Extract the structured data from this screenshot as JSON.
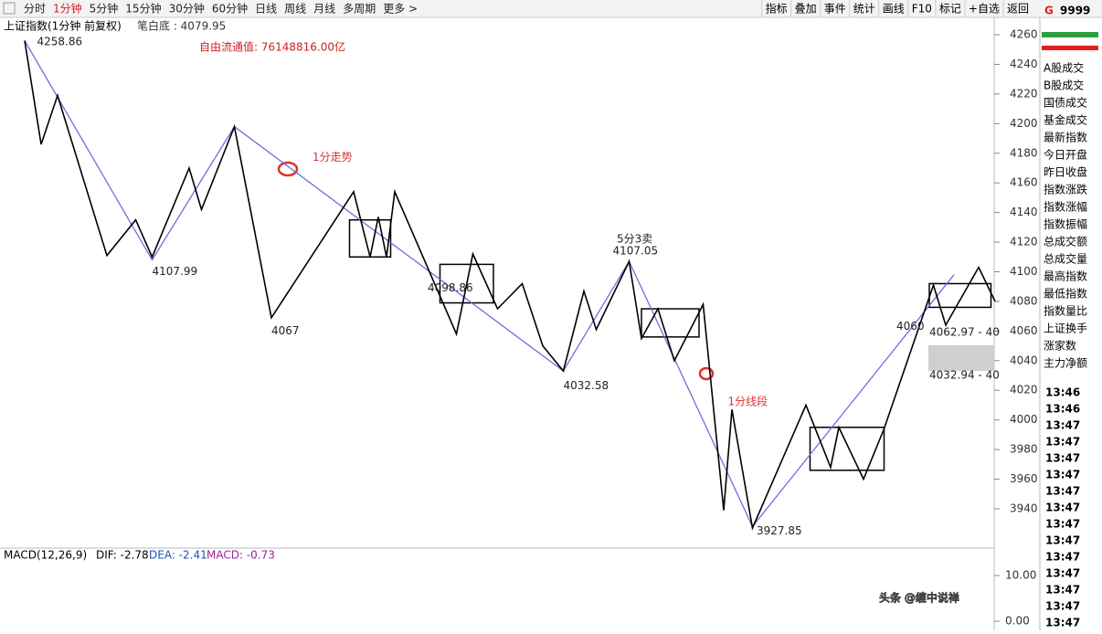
{
  "toolbar": {
    "left": [
      "分时",
      "1分钟",
      "5分钟",
      "15分钟",
      "30分钟",
      "60分钟",
      "日线",
      "周线",
      "月线",
      "多周期",
      "更多 >"
    ],
    "right": [
      "指标",
      "叠加",
      "事件",
      "统计",
      "画线",
      "F10",
      "标记",
      "+自选",
      "返回"
    ],
    "code": "9999",
    "code_badge": "G"
  },
  "header": {
    "title": "上证指数(1分钟 前复权)",
    "indicator": "笔白底 : 4079.95",
    "float_value": "自由流通值: 76148816.00亿"
  },
  "side_panel": {
    "fields": [
      "A股成交",
      "B股成交",
      "国债成交",
      "基金成交",
      "最新指数",
      "今日开盘",
      "昨日收盘",
      "指数涨跌",
      "指数涨幅",
      "指数振幅",
      "总成交额",
      "总成交量",
      "最高指数",
      "最低指数",
      "指数量比",
      "上证换手",
      "涨家数",
      "主力净额"
    ],
    "times": [
      "13:46",
      "13:46",
      "13:47",
      "13:47",
      "13:47",
      "13:47",
      "13:47",
      "13:47",
      "13:47",
      "13:47",
      "13:47",
      "13:47",
      "13:47",
      "13:47",
      "13:47"
    ]
  },
  "chart_data": {
    "type": "line",
    "xlim": [
      0,
      242
    ],
    "ylim": [
      3920,
      4270
    ],
    "yticks": [
      3940,
      3960,
      3980,
      4000,
      4020,
      4040,
      4060,
      4080,
      4100,
      4120,
      4140,
      4160,
      4180,
      4200,
      4220,
      4240,
      4260
    ],
    "series": [
      {
        "name": "笔",
        "color": "#000000",
        "x": [
          6,
          10,
          14,
          26,
          33,
          37,
          46,
          49,
          57,
          66,
          86,
          90,
          92,
          94,
          96,
          111,
          115,
          121,
          127,
          132,
          137,
          142,
          145,
          153,
          156,
          160,
          164,
          171,
          176,
          178,
          183,
          196,
          202,
          204,
          210,
          215,
          227,
          230,
          238,
          242
        ],
        "values": [
          4256,
          4186,
          4219,
          4111,
          4135,
          4110,
          4170,
          4142,
          4198,
          4069,
          4154,
          4110,
          4137,
          4110,
          4154,
          4058,
          4112,
          4075,
          4092,
          4050,
          4033,
          4087,
          4061,
          4107,
          4055,
          4075,
          4040,
          4078,
          3939,
          4007,
          3927,
          4010,
          3968,
          3995,
          3960,
          3994,
          4091,
          4064,
          4103,
          4080
        ]
      },
      {
        "name": "线段",
        "color": "#6b6fe0",
        "x": [
          6,
          37,
          57,
          137,
          153,
          183,
          232
        ],
        "values": [
          4256,
          4108,
          4198,
          4033,
          4107,
          3928,
          4098
        ]
      }
    ],
    "zones": [
      {
        "x": [
          85,
          95
        ],
        "values": [
          4110,
          4135
        ]
      },
      {
        "x": [
          107,
          120
        ],
        "values": [
          4079,
          4105
        ]
      },
      {
        "x": [
          156,
          170
        ],
        "values": [
          4056,
          4075
        ]
      },
      {
        "x": [
          197,
          215
        ],
        "values": [
          3966,
          3995
        ]
      },
      {
        "x": [
          226,
          241
        ],
        "values": [
          4076,
          4092
        ]
      }
    ],
    "price_labels": [
      {
        "text": "4258.86",
        "x": 9,
        "y": 4255
      },
      {
        "text": "4107.99",
        "x": 37,
        "y": 4100
      },
      {
        "text": "4067",
        "x": 66,
        "y": 4060
      },
      {
        "text": "4098.86",
        "x": 104,
        "y": 4089
      },
      {
        "text": "4032.58",
        "x": 137,
        "y": 4023
      },
      {
        "text": "4107.05",
        "x": 149,
        "y": 4114
      },
      {
        "text": "5分3卖",
        "x": 150,
        "y": 4122
      },
      {
        "text": "4060",
        "x": 218,
        "y": 4063
      },
      {
        "text": "3927.85",
        "x": 184,
        "y": 3925
      },
      {
        "text": "4062.97 - 40",
        "x": 226,
        "y": 4059
      },
      {
        "text": "4032.94 - 40",
        "x": 226,
        "y": 4030
      }
    ],
    "callouts": [
      {
        "text": "1分走势",
        "x": 76,
        "y": 4177
      },
      {
        "text": "1分线段",
        "x": 177,
        "y": 4012
      }
    ]
  },
  "macd": {
    "label": "MACD(12,26,9)",
    "dif": "DIF: -2.78",
    "dea": "DEA: -2.41",
    "macd": "MACD: -0.73",
    "ylim": [
      -2,
      16
    ],
    "yticks": [
      {
        "value": 0,
        "label": "0.00"
      },
      {
        "value": 10,
        "label": "10.00"
      }
    ]
  },
  "watermark": "头条 @缠中说禅"
}
